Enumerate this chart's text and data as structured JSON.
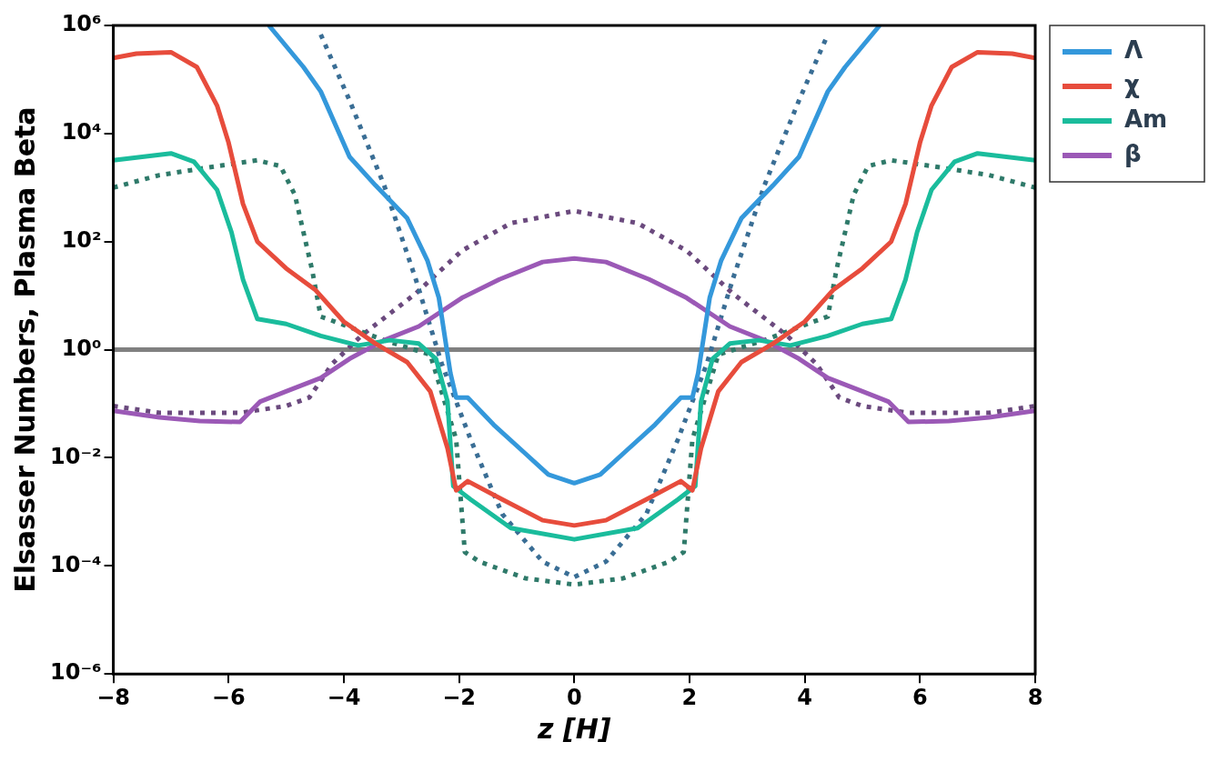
{
  "chart_data": {
    "type": "line",
    "xlabel": "z [H]",
    "ylabel": "Elsasser Numbers, Plasma Beta",
    "log": "y",
    "xlim": [
      -8,
      8
    ],
    "xticks": [
      {
        "value": -8,
        "label": "−8"
      },
      {
        "value": -6,
        "label": "−6"
      },
      {
        "value": -4,
        "label": "−4"
      },
      {
        "value": -2,
        "label": "−2"
      },
      0,
      2,
      4,
      6,
      8
    ],
    "ylim": [
      1e-06,
      1000000.0
    ],
    "yticks": [
      {
        "value": 1e-06,
        "label": "10⁻⁶"
      },
      {
        "value": 0.0001,
        "label": "10⁻⁴"
      },
      {
        "value": 0.01,
        "label": "10⁻²"
      },
      {
        "value": 1,
        "label": "10⁰"
      },
      {
        "value": 100,
        "label": "10²"
      },
      {
        "value": 10000.0,
        "label": "10⁴"
      },
      {
        "value": 1000000.0,
        "label": "10⁶"
      }
    ],
    "grid": false,
    "legend": "right",
    "ref_lines": [
      {
        "axis": "y",
        "value": 1,
        "color": "#808080"
      }
    ],
    "series": [
      {
        "name": "Λ",
        "color": "#3498db",
        "x": [
          -5.3,
          -4.7,
          -4.4,
          -3.9,
          -3.45,
          -2.9,
          -2.55,
          -2.35,
          -2.15,
          -2.05,
          -1.85,
          -1.4,
          -0.85,
          -0.45,
          0,
          0.45,
          0.85,
          1.4,
          1.85,
          2.05,
          2.15,
          2.35,
          2.55,
          2.9,
          3.45,
          3.9,
          4.4,
          4.7,
          5.3
        ],
        "values": [
          1000000.0,
          170000.0,
          60000.0,
          3700.0,
          1100.0,
          270,
          45,
          9.1,
          0.37,
          0.13,
          0.13,
          0.041,
          0.012,
          0.0049,
          0.0034,
          0.0049,
          0.012,
          0.041,
          0.13,
          0.13,
          0.37,
          9.1,
          45,
          270,
          1100.0,
          3700.0,
          60000.0,
          170000.0,
          1000000.0
        ]
      },
      {
        "name": "χ",
        "color": "#e74c3c",
        "x": [
          -8,
          -7.6,
          -7,
          -6.55,
          -6.2,
          -6,
          -5.75,
          -5.5,
          -5,
          -4.5,
          -4,
          -3.45,
          -2.9,
          -2.5,
          -2.2,
          -2.05,
          -1.85,
          -1.25,
          -0.55,
          0,
          0.55,
          1.25,
          1.85,
          2.05,
          2.2,
          2.5,
          2.9,
          3.45,
          4,
          4.5,
          5,
          5.5,
          5.75,
          6,
          6.2,
          6.55,
          7,
          7.6,
          8
        ],
        "values": [
          250000.0,
          300000.0,
          320000.0,
          170000.0,
          33000.0,
          6800.0,
          500,
          100,
          32,
          13,
          3.3,
          1.3,
          0.59,
          0.17,
          0.015,
          0.0025,
          0.0037,
          0.0017,
          0.0007,
          0.00056,
          0.0007,
          0.0017,
          0.0037,
          0.0025,
          0.015,
          0.17,
          0.59,
          1.3,
          3.3,
          13,
          32,
          100,
          500,
          6800.0,
          33000.0,
          170000.0,
          320000.0,
          300000.0,
          250000.0
        ]
      },
      {
        "name": "Am",
        "color": "#1abc9c",
        "x": [
          -8,
          -7,
          -6.6,
          -6.2,
          -5.95,
          -5.75,
          -5.5,
          -5,
          -4.4,
          -3.75,
          -3.2,
          -2.7,
          -2.4,
          -2.2,
          -2.1,
          -1.8,
          -1.1,
          0,
          1.1,
          1.8,
          2.1,
          2.2,
          2.4,
          2.7,
          3.2,
          3.75,
          4.4,
          5,
          5.5,
          5.75,
          5.95,
          6.2,
          6.6,
          7,
          8
        ],
        "values": [
          3200.0,
          4300.0,
          3000.0,
          910,
          150,
          20,
          3.7,
          3,
          1.8,
          1.2,
          1.5,
          1.3,
          0.68,
          0.11,
          0.003,
          0.0017,
          0.0005,
          0.00031,
          0.0005,
          0.0017,
          0.003,
          0.11,
          0.68,
          1.3,
          1.5,
          1.2,
          1.8,
          3,
          3.7,
          20,
          150,
          910,
          3000.0,
          4300.0,
          3200.0
        ]
      },
      {
        "name": "β",
        "color": "#9b59b6",
        "x": [
          -8,
          -7.2,
          -6.5,
          -5.8,
          -5.45,
          -5,
          -4.4,
          -3.9,
          -3.3,
          -2.7,
          -1.95,
          -1.3,
          -0.55,
          0,
          0.55,
          1.3,
          1.95,
          2.7,
          3.3,
          3.9,
          4.4,
          5,
          5.45,
          5.8,
          6.5,
          7.2,
          8
        ],
        "values": [
          0.074,
          0.056,
          0.048,
          0.046,
          0.11,
          0.17,
          0.3,
          0.68,
          1.5,
          2.7,
          9.1,
          20,
          42,
          49,
          42,
          20,
          9.1,
          2.7,
          1.5,
          0.68,
          0.3,
          0.17,
          0.11,
          0.046,
          0.048,
          0.056,
          0.074
        ]
      },
      {
        "color": "#3a6e95",
        "line_style": "dotted",
        "x": [
          -4.4,
          -3.9,
          -3.3,
          -2.75,
          -2.3,
          -1.8,
          -1.25,
          -0.55,
          0,
          0.55,
          1.25,
          1.8,
          2.3,
          2.75,
          3.3,
          3.9,
          4.4
        ],
        "values": [
          680000.0,
          41000.0,
          1100.0,
          20,
          0.55,
          0.022,
          0.00091,
          0.00012,
          6.2e-05,
          0.00012,
          0.00091,
          0.022,
          0.55,
          20,
          1100.0,
          41000.0,
          680000.0
        ]
      },
      {
        "color": "#2f7a6a",
        "line_style": "dotted",
        "x": [
          -8,
          -7.2,
          -6.2,
          -5.5,
          -5.1,
          -4.85,
          -4.55,
          -4.4,
          -4.15,
          -3.3,
          -2.5,
          -2.05,
          -1.9,
          -1.65,
          -0.85,
          0,
          0.85,
          1.65,
          1.9,
          2.05,
          2.5,
          3.3,
          4.15,
          4.4,
          4.55,
          4.85,
          5.1,
          5.5,
          6.2,
          7.2,
          8
        ],
        "values": [
          1000.0,
          1700.0,
          2500.0,
          3200.0,
          2500.0,
          740,
          30,
          4.1,
          3.3,
          1.5,
          0.81,
          0.022,
          0.00018,
          0.00012,
          5.9e-05,
          4.5e-05,
          5.9e-05,
          0.00012,
          0.00018,
          0.022,
          0.81,
          1.5,
          3.3,
          4.1,
          30,
          740,
          2500.0,
          3200.0,
          2500.0,
          1700.0,
          1000.0
        ]
      },
      {
        "color": "#6b4a7e",
        "line_style": "dotted",
        "x": [
          -8,
          -7.2,
          -5.8,
          -5,
          -4.6,
          -4.2,
          -3.7,
          -2.75,
          -1.95,
          -1.1,
          0,
          1.1,
          1.95,
          2.75,
          3.7,
          4.2,
          4.6,
          5,
          5.8,
          7.2,
          8
        ],
        "values": [
          0.091,
          0.068,
          0.068,
          0.091,
          0.13,
          0.55,
          1.8,
          11,
          68,
          220,
          370,
          220,
          68,
          11,
          1.8,
          0.55,
          0.13,
          0.091,
          0.068,
          0.068,
          0.091
        ]
      }
    ]
  }
}
